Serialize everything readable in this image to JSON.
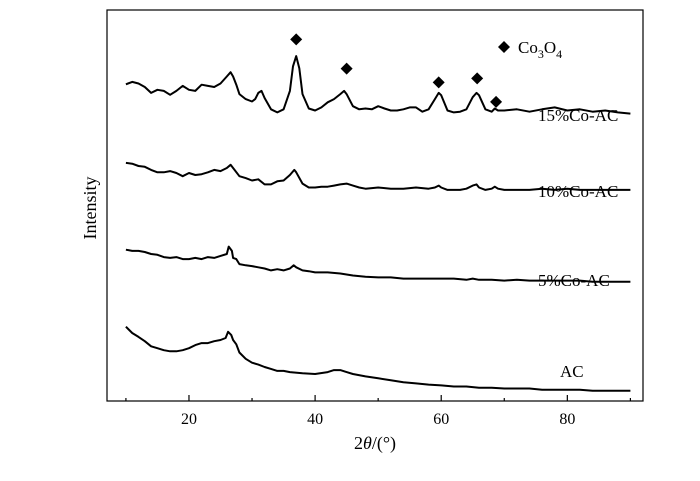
{
  "chart_data": {
    "type": "line",
    "xlabel_prefix": "2",
    "xlabel_theta": "θ",
    "xlabel_suffix": "/(°)",
    "ylabel": "Intensity",
    "xlim": [
      7,
      92
    ],
    "ylim": [
      0,
      100
    ],
    "x_ticks": [
      20,
      40,
      60,
      80
    ],
    "y_ticks_shown": false,
    "grid": false,
    "legend": {
      "marker": "diamond",
      "text_main": "Co",
      "sub1": "3",
      "mid": "O",
      "sub2": "4",
      "placement": "top-right"
    },
    "series": [
      {
        "name": "15%Co-AC",
        "points": [
          [
            10,
            81
          ],
          [
            11,
            81.6
          ],
          [
            12,
            81.2
          ],
          [
            13,
            80.3
          ],
          [
            14,
            78.8
          ],
          [
            15,
            79.6
          ],
          [
            16,
            79.3
          ],
          [
            17,
            78.3
          ],
          [
            18,
            79.3
          ],
          [
            19,
            80.6
          ],
          [
            20,
            79.6
          ],
          [
            21,
            79.3
          ],
          [
            22,
            80.9
          ],
          [
            23,
            80.6
          ],
          [
            24,
            80.3
          ],
          [
            25,
            81.2
          ],
          [
            26,
            83
          ],
          [
            26.6,
            84.1
          ],
          [
            27,
            83
          ],
          [
            27.5,
            80.9
          ],
          [
            28,
            78.5
          ],
          [
            29,
            77.2
          ],
          [
            30,
            76.6
          ],
          [
            30.5,
            77.2
          ],
          [
            31,
            78.8
          ],
          [
            31.5,
            79.3
          ],
          [
            32,
            77.5
          ],
          [
            33,
            74.6
          ],
          [
            34,
            73.8
          ],
          [
            35,
            74.6
          ],
          [
            36,
            79.3
          ],
          [
            36.5,
            85.6
          ],
          [
            37,
            88.2
          ],
          [
            37.5,
            85.1
          ],
          [
            38,
            78.5
          ],
          [
            39,
            74.8
          ],
          [
            40,
            74.3
          ],
          [
            41,
            75.1
          ],
          [
            42,
            76.4
          ],
          [
            43,
            77.2
          ],
          [
            44,
            78.5
          ],
          [
            44.6,
            79.3
          ],
          [
            45,
            78.5
          ],
          [
            46,
            75.4
          ],
          [
            47,
            74.6
          ],
          [
            48,
            74.8
          ],
          [
            49,
            74.6
          ],
          [
            50,
            75.4
          ],
          [
            51,
            74.8
          ],
          [
            52,
            74.3
          ],
          [
            53,
            74.3
          ],
          [
            54,
            74.6
          ],
          [
            55,
            75.1
          ],
          [
            56,
            75.1
          ],
          [
            57,
            74
          ],
          [
            58,
            74.6
          ],
          [
            59,
            77.2
          ],
          [
            59.6,
            78.8
          ],
          [
            60,
            78.2
          ],
          [
            61,
            74.3
          ],
          [
            62,
            73.8
          ],
          [
            63,
            74
          ],
          [
            64,
            74.6
          ],
          [
            65,
            77.7
          ],
          [
            65.6,
            78.8
          ],
          [
            66,
            78.2
          ],
          [
            67,
            74.6
          ],
          [
            68,
            74
          ],
          [
            68.5,
            74.8
          ],
          [
            69,
            74.3
          ],
          [
            70,
            74.3
          ],
          [
            72,
            74.6
          ],
          [
            74,
            74
          ],
          [
            76,
            74.6
          ],
          [
            78,
            75.1
          ],
          [
            80,
            74.3
          ],
          [
            82,
            74.6
          ],
          [
            84,
            74
          ],
          [
            86,
            74.3
          ],
          [
            88,
            73.8
          ],
          [
            90,
            73.5
          ]
        ]
      },
      {
        "name": "10%Co-AC",
        "points": [
          [
            10,
            60.9
          ],
          [
            11,
            60.7
          ],
          [
            12,
            60.1
          ],
          [
            13,
            59.9
          ],
          [
            14,
            59.1
          ],
          [
            15,
            58.5
          ],
          [
            16,
            58.5
          ],
          [
            17,
            58.8
          ],
          [
            18,
            58.3
          ],
          [
            19,
            57.5
          ],
          [
            20,
            58.3
          ],
          [
            21,
            57.8
          ],
          [
            22,
            58
          ],
          [
            23,
            58.5
          ],
          [
            24,
            59.1
          ],
          [
            25,
            58.8
          ],
          [
            26,
            59.6
          ],
          [
            26.6,
            60.4
          ],
          [
            27,
            59.6
          ],
          [
            28,
            57.5
          ],
          [
            29,
            57
          ],
          [
            30,
            56.4
          ],
          [
            31,
            56.7
          ],
          [
            32,
            55.4
          ],
          [
            33,
            55.4
          ],
          [
            34,
            56.2
          ],
          [
            35,
            56.4
          ],
          [
            36,
            57.8
          ],
          [
            36.7,
            59.1
          ],
          [
            37,
            58.5
          ],
          [
            38,
            55.6
          ],
          [
            39,
            54.6
          ],
          [
            40,
            54.6
          ],
          [
            41,
            54.8
          ],
          [
            42,
            54.8
          ],
          [
            43,
            55.1
          ],
          [
            44,
            55.4
          ],
          [
            45,
            55.6
          ],
          [
            46,
            55.1
          ],
          [
            47,
            54.6
          ],
          [
            48,
            54.3
          ],
          [
            50,
            54.6
          ],
          [
            52,
            54.3
          ],
          [
            54,
            54.3
          ],
          [
            56,
            54.6
          ],
          [
            58,
            54.3
          ],
          [
            59,
            54.6
          ],
          [
            59.6,
            55.1
          ],
          [
            60,
            54.6
          ],
          [
            61,
            54
          ],
          [
            62,
            54
          ],
          [
            63,
            54
          ],
          [
            64,
            54.3
          ],
          [
            65,
            55.1
          ],
          [
            65.6,
            55.4
          ],
          [
            66,
            54.6
          ],
          [
            67,
            54
          ],
          [
            68,
            54.3
          ],
          [
            68.5,
            54.8
          ],
          [
            69,
            54.3
          ],
          [
            70,
            54
          ],
          [
            72,
            54
          ],
          [
            74,
            54
          ],
          [
            76,
            54.3
          ],
          [
            78,
            54
          ],
          [
            80,
            54.3
          ],
          [
            82,
            54
          ],
          [
            84,
            54
          ],
          [
            86,
            54
          ],
          [
            88,
            54
          ],
          [
            90,
            54
          ]
        ]
      },
      {
        "name": "5%Co-AC",
        "points": [
          [
            10,
            38.7
          ],
          [
            11,
            38.4
          ],
          [
            12,
            38.4
          ],
          [
            13,
            38.1
          ],
          [
            14,
            37.6
          ],
          [
            15,
            37.4
          ],
          [
            16,
            36.8
          ],
          [
            17,
            36.6
          ],
          [
            18,
            36.8
          ],
          [
            19,
            36.3
          ],
          [
            20,
            36.3
          ],
          [
            21,
            36.6
          ],
          [
            22,
            36.3
          ],
          [
            23,
            36.8
          ],
          [
            24,
            36.6
          ],
          [
            25,
            37.1
          ],
          [
            26,
            37.6
          ],
          [
            26.3,
            39.5
          ],
          [
            26.8,
            38.4
          ],
          [
            27,
            36.6
          ],
          [
            27.5,
            36.3
          ],
          [
            28,
            35
          ],
          [
            29,
            34.7
          ],
          [
            30,
            34.5
          ],
          [
            31,
            34.2
          ],
          [
            32,
            33.9
          ],
          [
            33,
            33.4
          ],
          [
            34,
            33.7
          ],
          [
            35,
            33.4
          ],
          [
            36,
            33.9
          ],
          [
            36.6,
            34.7
          ],
          [
            37,
            34.2
          ],
          [
            38,
            33.4
          ],
          [
            39,
            33.2
          ],
          [
            40,
            32.9
          ],
          [
            42,
            32.9
          ],
          [
            44,
            32.6
          ],
          [
            46,
            32.1
          ],
          [
            48,
            31.8
          ],
          [
            50,
            31.6
          ],
          [
            52,
            31.6
          ],
          [
            54,
            31.3
          ],
          [
            56,
            31.3
          ],
          [
            58,
            31.3
          ],
          [
            60,
            31.3
          ],
          [
            62,
            31.3
          ],
          [
            64,
            31
          ],
          [
            65,
            31.3
          ],
          [
            66,
            31
          ],
          [
            68,
            31
          ],
          [
            70,
            30.8
          ],
          [
            72,
            31
          ],
          [
            74,
            30.8
          ],
          [
            76,
            30.8
          ],
          [
            78,
            30.8
          ],
          [
            80,
            30.8
          ],
          [
            82,
            30.8
          ],
          [
            84,
            30.5
          ],
          [
            86,
            30.5
          ],
          [
            88,
            30.5
          ],
          [
            90,
            30.5
          ]
        ]
      },
      {
        "name": "AC",
        "points": [
          [
            10,
            19
          ],
          [
            11,
            17.4
          ],
          [
            12,
            16.4
          ],
          [
            13,
            15.3
          ],
          [
            14,
            14
          ],
          [
            15,
            13.5
          ],
          [
            16,
            13
          ],
          [
            17,
            12.7
          ],
          [
            18,
            12.7
          ],
          [
            19,
            13
          ],
          [
            20,
            13.5
          ],
          [
            21,
            14.3
          ],
          [
            22,
            14.8
          ],
          [
            23,
            14.8
          ],
          [
            24,
            15.3
          ],
          [
            25,
            15.6
          ],
          [
            25.8,
            16.1
          ],
          [
            26.2,
            17.7
          ],
          [
            26.7,
            16.9
          ],
          [
            27,
            15.6
          ],
          [
            27.5,
            14.5
          ],
          [
            28,
            12.4
          ],
          [
            29,
            10.8
          ],
          [
            30,
            9.8
          ],
          [
            31,
            9.3
          ],
          [
            32,
            8.7
          ],
          [
            33,
            8.2
          ],
          [
            34,
            7.7
          ],
          [
            35,
            7.7
          ],
          [
            36,
            7.4
          ],
          [
            38,
            7.1
          ],
          [
            40,
            6.9
          ],
          [
            42,
            7.4
          ],
          [
            43,
            7.9
          ],
          [
            44,
            7.9
          ],
          [
            45,
            7.4
          ],
          [
            46,
            6.9
          ],
          [
            48,
            6.3
          ],
          [
            50,
            5.8
          ],
          [
            52,
            5.3
          ],
          [
            54,
            4.8
          ],
          [
            56,
            4.5
          ],
          [
            58,
            4.2
          ],
          [
            60,
            4
          ],
          [
            62,
            3.7
          ],
          [
            64,
            3.7
          ],
          [
            66,
            3.4
          ],
          [
            68,
            3.4
          ],
          [
            70,
            3.2
          ],
          [
            72,
            3.2
          ],
          [
            74,
            3.2
          ],
          [
            76,
            2.9
          ],
          [
            78,
            2.9
          ],
          [
            80,
            2.9
          ],
          [
            82,
            2.9
          ],
          [
            84,
            2.6
          ],
          [
            86,
            2.6
          ],
          [
            88,
            2.6
          ],
          [
            90,
            2.6
          ]
        ]
      }
    ],
    "co3o4_peak_markers": [
      [
        37,
        92.5
      ],
      [
        45,
        85
      ],
      [
        59.6,
        81.5
      ],
      [
        65.7,
        82.5
      ],
      [
        68.7,
        76.5
      ]
    ]
  }
}
